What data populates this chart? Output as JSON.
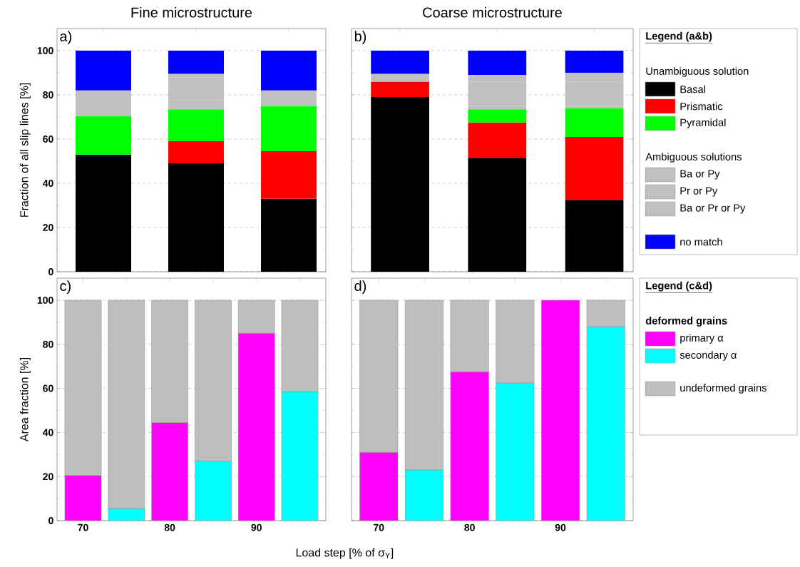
{
  "chart_data": [
    {
      "type": "bar",
      "stacked": true,
      "title": "Fine microstructure",
      "ylabel": "Fraction of all slip lines [%]",
      "categories": [
        "70",
        "80",
        "90"
      ],
      "ylim": [
        0,
        110
      ],
      "yticks": [
        0,
        20,
        40,
        60,
        80,
        100
      ],
      "grid": "y",
      "tick_labels": "y",
      "annotations": [
        "a)"
      ],
      "series": [
        {
          "color": "#000000",
          "values": [
            53,
            49,
            33
          ]
        },
        {
          "color": "#ff0000",
          "values": [
            0,
            10,
            21.5
          ]
        },
        {
          "color": "#00ff00",
          "values": [
            17.5,
            14.5,
            20.5
          ]
        },
        {
          "color": "#c0c0c0",
          "values": [
            0,
            4,
            0
          ]
        },
        {
          "color": "#c0c0c0",
          "values": [
            0,
            10.5,
            7
          ]
        },
        {
          "color": "#c0c0c0",
          "values": [
            11.5,
            1.5,
            0
          ]
        },
        {
          "color": "#0000ff",
          "values": [
            18,
            10.5,
            18
          ]
        }
      ]
    },
    {
      "type": "bar",
      "stacked": true,
      "title": "Coarse microstructure",
      "categories": [
        "70",
        "80",
        "90"
      ],
      "ylim": [
        0,
        110
      ],
      "yticks": [
        0,
        20,
        40,
        60,
        80,
        100
      ],
      "grid": "y",
      "tick_labels": false,
      "legend": "right",
      "legend_title": "Legend (a&b)",
      "annotations": [
        "b)",
        "Unambiguous solution",
        "Ambiguous solutions"
      ],
      "series": [
        {
          "name": "Basal",
          "color": "#000000",
          "values": [
            79,
            51.5,
            32.5
          ]
        },
        {
          "name": "Prismatic",
          "color": "#ff0000",
          "values": [
            7,
            16,
            28.5
          ]
        },
        {
          "name": "Pyramidal",
          "color": "#00ff00",
          "values": [
            0,
            6,
            13
          ]
        },
        {
          "name": "Ba or Py",
          "color": "#c0c0c0",
          "values": [
            0,
            1.5,
            1
          ]
        },
        {
          "name": "Pr or Py",
          "color": "#c0c0c0",
          "values": [
            0,
            11,
            11
          ]
        },
        {
          "name": "Ba or Pr or Py",
          "color": "#c0c0c0",
          "values": [
            3.5,
            3,
            4
          ]
        },
        {
          "name": "no match",
          "color": "#0000ff",
          "values": [
            10.5,
            11,
            10
          ]
        }
      ]
    },
    {
      "type": "bar",
      "stacked": true,
      "ylabel": "Area fraction [%]",
      "xlabel": "Load step [% of σ$_{Y}$]",
      "categories": [
        "70",
        null,
        "80",
        null,
        "90",
        null
      ],
      "ylim": [
        0,
        110
      ],
      "yticks": [
        0,
        20,
        40,
        60,
        80,
        100
      ],
      "grid": "y",
      "annotations": [
        "c)"
      ],
      "series": [
        {
          "color": "#ff00ff",
          "values": [
            20.5,
            null,
            44.5,
            null,
            85,
            null
          ]
        },
        {
          "color": "#00ffff",
          "values": [
            null,
            5.5,
            null,
            27,
            null,
            58.5
          ]
        },
        {
          "color": "#bebebe",
          "values": [
            79.5,
            94.5,
            55.5,
            73,
            15,
            41.5
          ]
        }
      ]
    },
    {
      "type": "bar",
      "stacked": true,
      "categories": [
        "70",
        null,
        "80",
        null,
        "90",
        null
      ],
      "ylim": [
        0,
        110
      ],
      "yticks": [
        0,
        20,
        40,
        60,
        80,
        100
      ],
      "grid": "y",
      "tick_labels": "x",
      "legend": "right",
      "legend_title": "Legend (c&d)",
      "annotations": [
        "d)",
        "deformed grains"
      ],
      "series": [
        {
          "name": "primary α",
          "color": "#ff00ff",
          "values": [
            31,
            null,
            67.5,
            null,
            100,
            null
          ]
        },
        {
          "name": "secondary α",
          "color": "#00ffff",
          "values": [
            null,
            23,
            null,
            62.5,
            null,
            88
          ]
        },
        {
          "name": "undeformed grains",
          "color": "#bebebe",
          "values": [
            69,
            77,
            32.5,
            37.5,
            0,
            12
          ]
        }
      ]
    }
  ]
}
